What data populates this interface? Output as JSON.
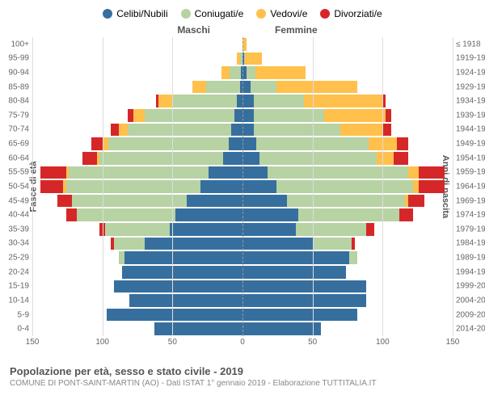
{
  "chart": {
    "type": "population-pyramid",
    "legend": [
      {
        "label": "Celibi/Nubili",
        "color": "#366f9e"
      },
      {
        "label": "Coniugati/e",
        "color": "#b7d2a3"
      },
      {
        "label": "Vedovi/e",
        "color": "#ffc04c"
      },
      {
        "label": "Divorziati/e",
        "color": "#d62728"
      }
    ],
    "header_left": "Maschi",
    "header_right": "Femmine",
    "axis_left_title": "Fasce di età",
    "axis_right_title": "Anni di nascita",
    "xlim": 150,
    "xticks_left": [
      150,
      100,
      50,
      0
    ],
    "xticks_right": [
      50,
      100,
      150
    ],
    "background_color": "#ffffff",
    "grid_color": "#dddddd",
    "center_line_color": "#999999",
    "rows": [
      {
        "age": "0-4",
        "birth": "2014-2018",
        "m": [
          63,
          0,
          0,
          0
        ],
        "f": [
          56,
          0,
          0,
          0
        ]
      },
      {
        "age": "5-9",
        "birth": "2009-2013",
        "m": [
          97,
          0,
          0,
          0
        ],
        "f": [
          82,
          0,
          0,
          0
        ]
      },
      {
        "age": "10-14",
        "birth": "2004-2008",
        "m": [
          81,
          0,
          0,
          0
        ],
        "f": [
          88,
          0,
          0,
          0
        ]
      },
      {
        "age": "15-19",
        "birth": "1999-2003",
        "m": [
          92,
          0,
          0,
          0
        ],
        "f": [
          88,
          0,
          0,
          0
        ]
      },
      {
        "age": "20-24",
        "birth": "1994-1998",
        "m": [
          86,
          0,
          0,
          0
        ],
        "f": [
          74,
          0,
          0,
          0
        ]
      },
      {
        "age": "25-29",
        "birth": "1989-1993",
        "m": [
          84,
          4,
          0,
          0
        ],
        "f": [
          76,
          6,
          0,
          0
        ]
      },
      {
        "age": "30-34",
        "birth": "1984-1988",
        "m": [
          70,
          22,
          0,
          2
        ],
        "f": [
          50,
          28,
          0,
          2
        ]
      },
      {
        "age": "35-39",
        "birth": "1979-1983",
        "m": [
          52,
          46,
          0,
          4
        ],
        "f": [
          38,
          50,
          0,
          6
        ]
      },
      {
        "age": "40-44",
        "birth": "1974-1978",
        "m": [
          48,
          70,
          0,
          8
        ],
        "f": [
          40,
          72,
          0,
          10
        ]
      },
      {
        "age": "45-49",
        "birth": "1969-1973",
        "m": [
          40,
          82,
          0,
          10
        ],
        "f": [
          32,
          84,
          2,
          12
        ]
      },
      {
        "age": "50-54",
        "birth": "1964-1968",
        "m": [
          30,
          96,
          2,
          16
        ],
        "f": [
          24,
          98,
          4,
          18
        ]
      },
      {
        "age": "55-59",
        "birth": "1959-1963",
        "m": [
          24,
          100,
          2,
          18
        ],
        "f": [
          18,
          100,
          8,
          18
        ]
      },
      {
        "age": "60-64",
        "birth": "1954-1958",
        "m": [
          14,
          88,
          2,
          10
        ],
        "f": [
          12,
          84,
          12,
          10
        ]
      },
      {
        "age": "65-69",
        "birth": "1949-1953",
        "m": [
          10,
          86,
          4,
          8
        ],
        "f": [
          10,
          80,
          20,
          8
        ]
      },
      {
        "age": "70-74",
        "birth": "1944-1948",
        "m": [
          8,
          74,
          6,
          6
        ],
        "f": [
          8,
          62,
          30,
          6
        ]
      },
      {
        "age": "75-79",
        "birth": "1939-1943",
        "m": [
          6,
          64,
          8,
          4
        ],
        "f": [
          8,
          50,
          44,
          4
        ]
      },
      {
        "age": "80-84",
        "birth": "1934-1938",
        "m": [
          4,
          46,
          10,
          2
        ],
        "f": [
          8,
          36,
          56,
          2
        ]
      },
      {
        "age": "85-89",
        "birth": "1929-1933",
        "m": [
          2,
          24,
          10,
          0
        ],
        "f": [
          6,
          18,
          58,
          0
        ]
      },
      {
        "age": "90-94",
        "birth": "1924-1928",
        "m": [
          1,
          8,
          6,
          0
        ],
        "f": [
          3,
          6,
          36,
          0
        ]
      },
      {
        "age": "95-99",
        "birth": "1919-1923",
        "m": [
          0,
          2,
          2,
          0
        ],
        "f": [
          1,
          1,
          12,
          0
        ]
      },
      {
        "age": "100+",
        "birth": "≤ 1918",
        "m": [
          0,
          0,
          0,
          0
        ],
        "f": [
          0,
          0,
          3,
          0
        ]
      }
    ],
    "title": "Popolazione per età, sesso e stato civile - 2019",
    "subtitle": "COMUNE DI PONT-SAINT-MARTIN (AO) - Dati ISTAT 1° gennaio 2019 - Elaborazione TUTTITALIA.IT"
  }
}
